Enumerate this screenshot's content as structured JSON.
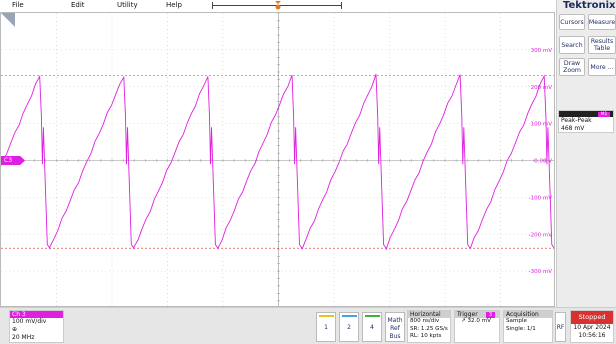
{
  "menu": {
    "file": "File",
    "edit": "Edit",
    "utility": "Utility",
    "help": "Help"
  },
  "colors": {
    "trace": "#e020e0",
    "reference": "#e05050",
    "grid": "#c8c8c8",
    "brand": "#1a2a5e",
    "stopped": "#d93030"
  },
  "display": {
    "channel_marker": "C3",
    "voltage_labels": [
      "300 mV",
      "200 mV",
      "100 mV",
      "0.00 V",
      "-100 mV",
      "-200 mV",
      "-300 mV"
    ],
    "reference_levels_mv": [
      230,
      -238
    ],
    "trace": {
      "channel": "Ch 3",
      "waveform": "sawtooth",
      "periods_visible": 6.6,
      "min_mv": -238,
      "max_mv": 230,
      "phase_offset_fraction": 0.42,
      "spike_amplitude_mv": 130
    }
  },
  "right_panel": {
    "brand": "Tektronix",
    "buttons": {
      "cursors": "Cursors",
      "measure": "Measure",
      "search": "Search",
      "results_table": "Results Table",
      "draw_zoom": "Draw Zoom",
      "more": "More ..."
    },
    "measurement": {
      "badge": "M1",
      "label": "Peak-Peak",
      "value": "468 mV"
    }
  },
  "bottom": {
    "ch3": {
      "title": "Ch 3",
      "scale": "100 mV/div",
      "coupling": "⊕",
      "bandwidth": "20 MHz"
    },
    "channel_buttons": [
      "1",
      "2",
      "4"
    ],
    "math_ref_bus": "Math Ref Bus",
    "horizontal": {
      "title": "Horizontal",
      "scale": "800 ns/div",
      "sample_rate": "SR: 1.25 GS/s",
      "record_length": "RL: 10 kpts"
    },
    "trigger": {
      "title": "Trigger",
      "badge": "3",
      "level": "32.0 mV"
    },
    "acquisition": {
      "title": "Acquisition",
      "mode": "Sample",
      "count": "Single: 1/1"
    },
    "rf": "RF",
    "status": {
      "state": "Stopped",
      "date": "10 Apr 2024",
      "time": "10:56:16"
    }
  }
}
